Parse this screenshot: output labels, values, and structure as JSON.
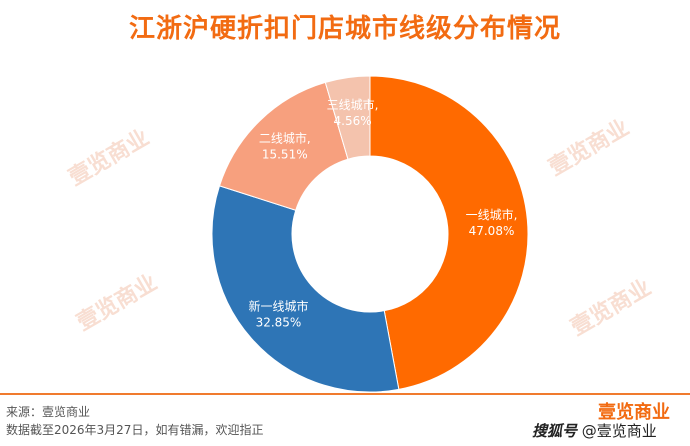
{
  "title": "江浙沪硬折扣门店城市线级分布情况",
  "watermark_text": "壹览商业",
  "footer": {
    "source": "来源：壹览商业",
    "note": "数据截至2026年3月27日，如有错漏，欢迎指正"
  },
  "brand": "壹览商业",
  "credit": {
    "platform": "搜狐号",
    "handle": "@壹览商业"
  },
  "chart_data": {
    "type": "pie",
    "donut": true,
    "legend": "none",
    "slices": [
      {
        "label": "一线城市,",
        "value_label": "47.08%",
        "value": 47.08,
        "color": "#ff6a00"
      },
      {
        "label": "新一线城市",
        "value_label": "32.85%",
        "value": 32.85,
        "color": "#2e75b6"
      },
      {
        "label": "二线城市,",
        "value_label": "15.51%",
        "value": 15.51,
        "color": "#f7a07e"
      },
      {
        "label": "三线城市,",
        "value_label": "4.56%",
        "value": 4.56,
        "color": "#f4c3ad"
      }
    ]
  }
}
